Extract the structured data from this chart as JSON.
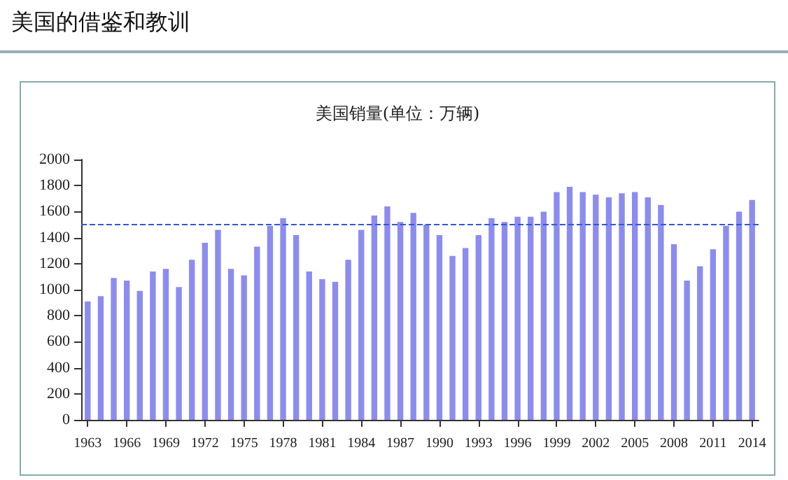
{
  "chart_data": {
    "type": "bar",
    "title": "美国的借鉴和教训",
    "subtitle": "美国销量(单位：万辆)",
    "categories": [
      "1963",
      null,
      null,
      "1966",
      null,
      null,
      "1969",
      null,
      null,
      "1972",
      null,
      null,
      "1975",
      null,
      null,
      "1978",
      null,
      null,
      "1981",
      null,
      null,
      "1984",
      null,
      null,
      "1987",
      null,
      null,
      "1990",
      null,
      null,
      "1993",
      null,
      null,
      "1996",
      null,
      null,
      "1999",
      null,
      null,
      "2002",
      null,
      null,
      "2005",
      null,
      null,
      "2008",
      null,
      null,
      "2011",
      null,
      null,
      "2014"
    ],
    "values": [
      910,
      950,
      1090,
      1070,
      990,
      1140,
      1160,
      1020,
      1230,
      1360,
      1460,
      1160,
      1110,
      1330,
      1490,
      1550,
      1420,
      1140,
      1080,
      1060,
      1230,
      1460,
      1570,
      1640,
      1520,
      1590,
      1500,
      1420,
      1260,
      1320,
      1420,
      1550,
      1520,
      1560,
      1560,
      1600,
      1750,
      1790,
      1750,
      1730,
      1710,
      1740,
      1750,
      1710,
      1650,
      1350,
      1070,
      1180,
      1310,
      1490,
      1600,
      1690
    ],
    "color": "#8c8cf0",
    "ylim": [
      0,
      2000
    ],
    "yticks": [
      0,
      200,
      400,
      600,
      800,
      1000,
      1200,
      1400,
      1600,
      1800,
      2000
    ],
    "ref_lines": [
      {
        "axis": "y",
        "value": 1500,
        "color": "#3355dd",
        "line_style": "dashed"
      }
    ],
    "grid": false
  }
}
